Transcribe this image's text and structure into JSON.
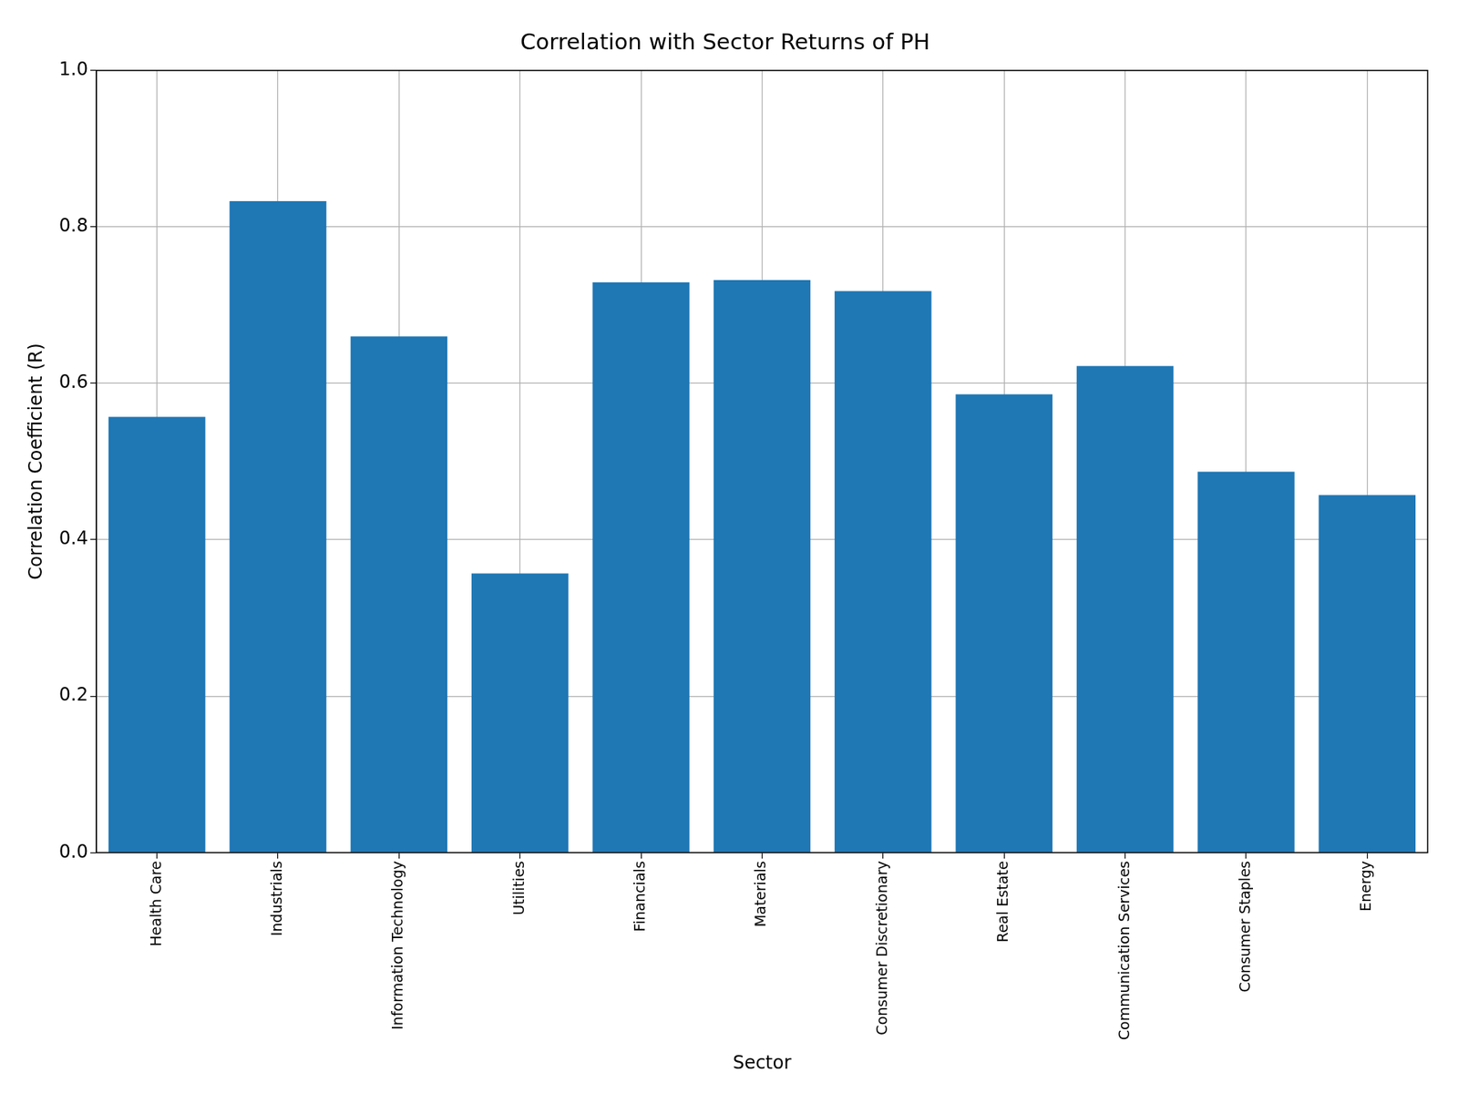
{
  "chart_data": {
    "type": "bar",
    "title": "Correlation with Sector Returns of PH",
    "x_label": "Sector",
    "y_label": "Correlation Coefficient (R)",
    "categories": [
      "Health Care",
      "Industrials",
      "Information Technology",
      "Utilities",
      "Financials",
      "Materials",
      "Consumer Discretionary",
      "Real Estate",
      "Communication Services",
      "Consumer Staples",
      "Energy"
    ],
    "values": [
      0.557,
      0.833,
      0.66,
      0.357,
      0.729,
      0.732,
      0.718,
      0.586,
      0.622,
      0.487,
      0.457
    ],
    "color": "#1f77b4",
    "ylim": [
      0,
      1
    ],
    "yticks": [
      {
        "value": 0,
        "label": "0.0"
      },
      0.2,
      0.4,
      0.6,
      0.8,
      {
        "value": 1,
        "label": "1.0"
      }
    ],
    "grid": true
  }
}
